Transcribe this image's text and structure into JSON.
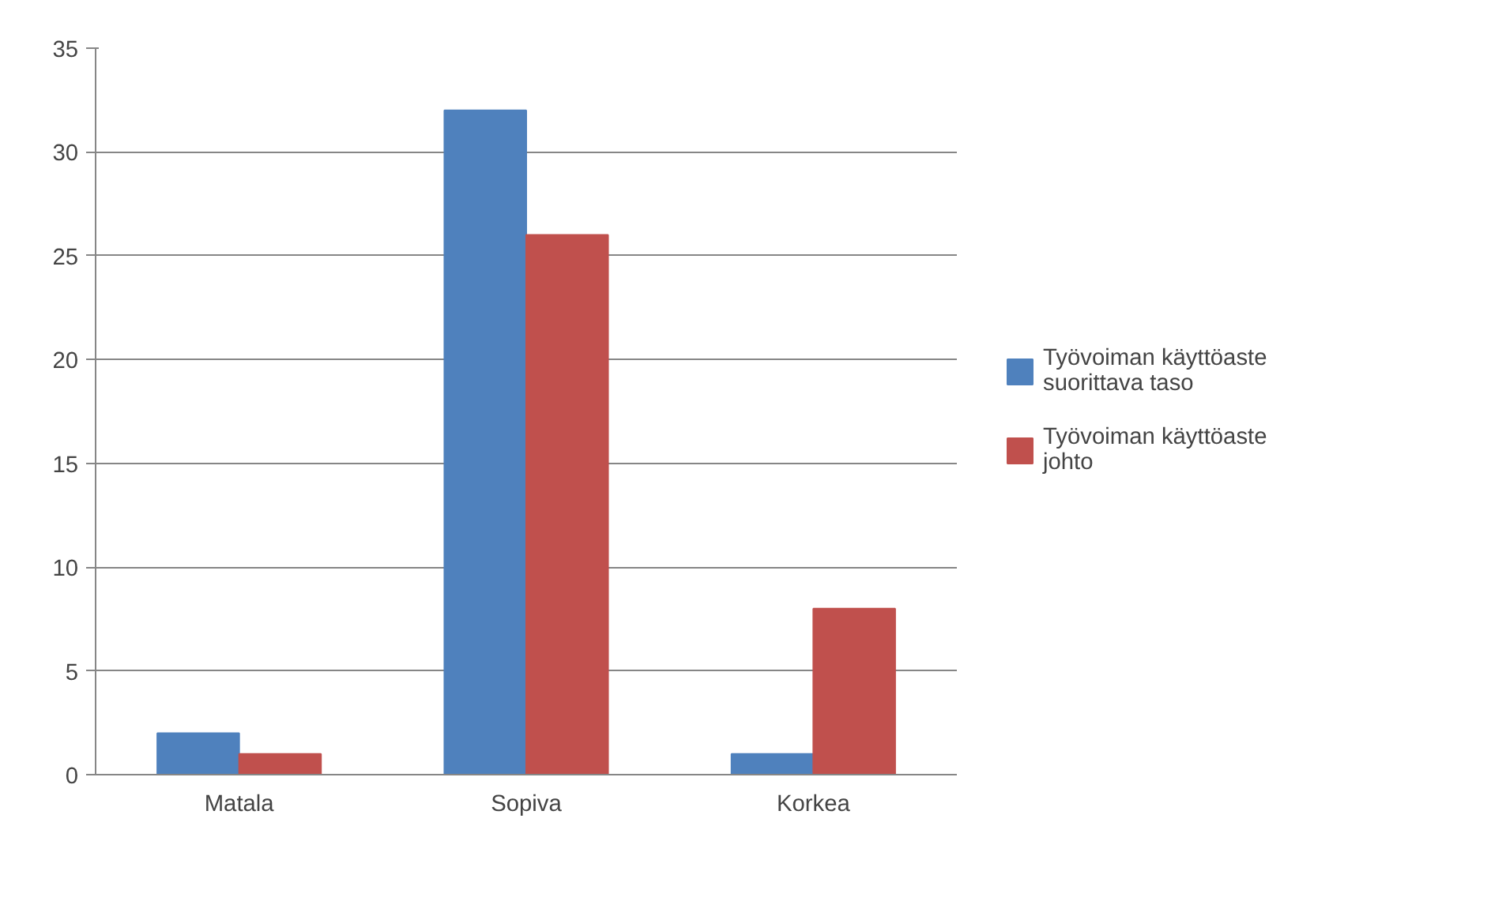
{
  "chart_data": {
    "type": "bar",
    "categories": [
      "Matala",
      "Sopiva",
      "Korkea"
    ],
    "series": [
      {
        "name": "Työvoiman käyttöaste suorittava taso",
        "color": "#4f81bd",
        "values": [
          2,
          32,
          1
        ]
      },
      {
        "name": "Työvoiman käyttöaste johto",
        "color": "#c0504d",
        "values": [
          1,
          26,
          8
        ]
      }
    ],
    "ylim": [
      0,
      35
    ],
    "yticks": [
      0,
      5,
      10,
      15,
      20,
      25,
      30,
      35
    ],
    "grid": "y",
    "legend": "right"
  }
}
